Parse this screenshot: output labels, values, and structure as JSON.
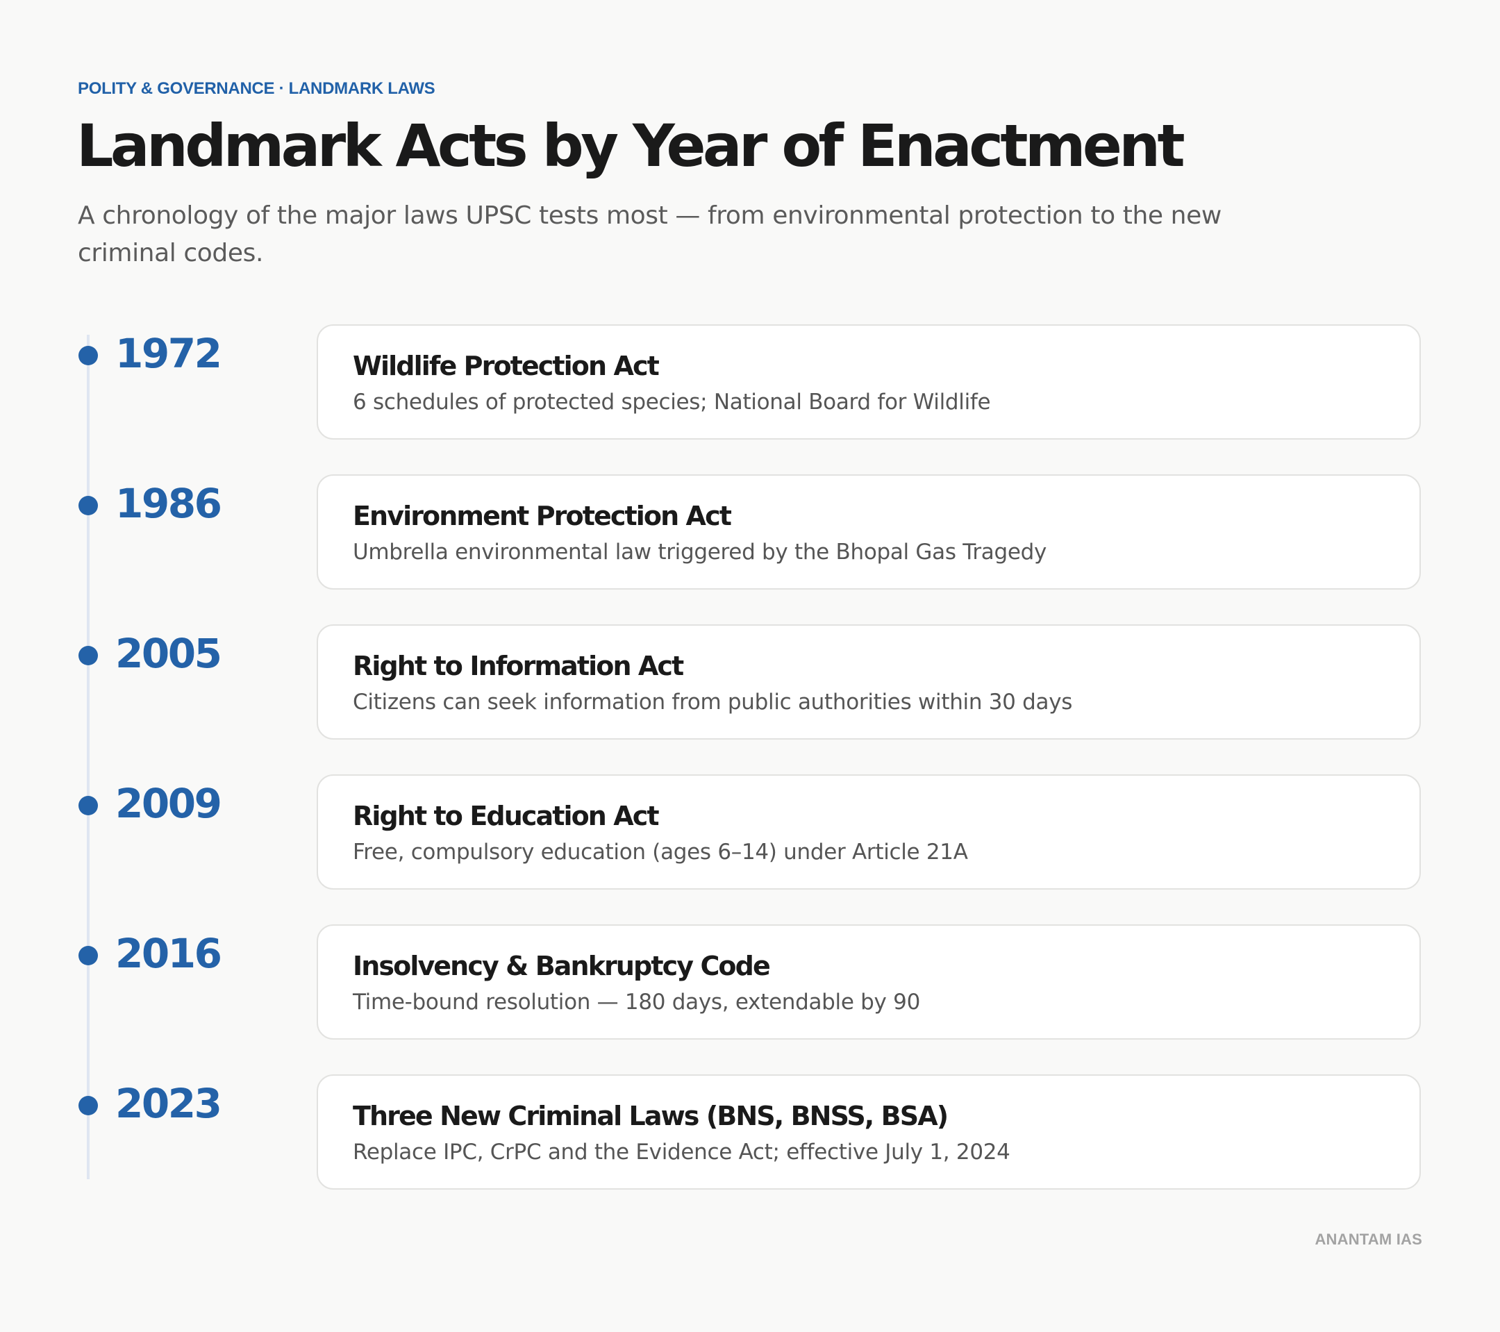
{
  "header": {
    "kicker": "POLITY & GOVERNANCE · LANDMARK LAWS",
    "title": "Landmark Acts by Year of Enactment",
    "subtitle": "A chronology of the major laws UPSC tests most — from environmental protection to the new criminal codes."
  },
  "timeline": [
    {
      "year": "1972",
      "title": "Wildlife Protection Act",
      "description": "6 schedules of protected species; National Board for Wildlife"
    },
    {
      "year": "1986",
      "title": "Environment Protection Act",
      "description": "Umbrella environmental law triggered by the Bhopal Gas Tragedy"
    },
    {
      "year": "2005",
      "title": "Right to Information Act",
      "description": "Citizens can seek information from public authorities within 30 days"
    },
    {
      "year": "2009",
      "title": "Right to Education Act",
      "description": "Free, compulsory education (ages 6–14) under Article 21A"
    },
    {
      "year": "2016",
      "title": "Insolvency & Bankruptcy Code",
      "description": "Time-bound resolution — 180 days, extendable by 90"
    },
    {
      "year": "2023",
      "title": "Three New Criminal Laws (BNS, BNSS, BSA)",
      "description": "Replace IPC, CrPC and the Evidence Act; effective July 1, 2024"
    }
  ],
  "footer": {
    "brand": "ANANTAM IAS"
  },
  "colors": {
    "accent": "#2462a8",
    "timeline_line": "#dfe6f1",
    "card_border": "#e2e2e0",
    "background": "#f9f9f8"
  }
}
